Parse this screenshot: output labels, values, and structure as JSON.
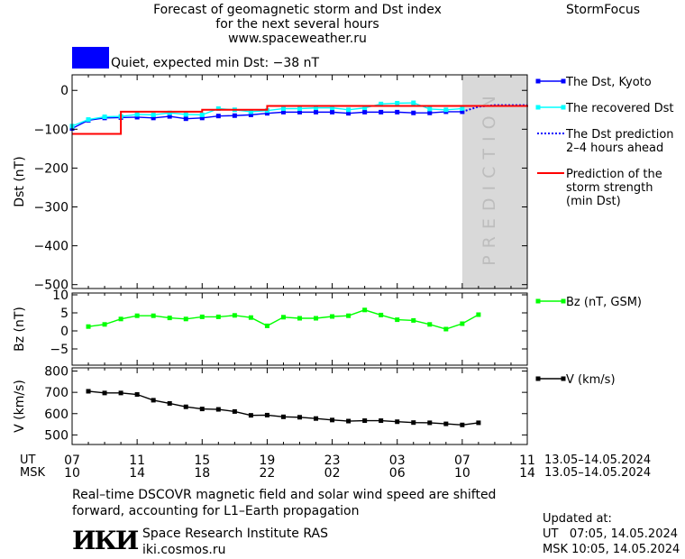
{
  "header": {
    "title_lines": [
      "Forecast of geomagnetic storm and Dst index",
      "for the next several hours",
      "www.spaceweather.ru"
    ],
    "brand": "StormFocus",
    "status_text": "Quiet, expected min Dst: −38 nT",
    "status_color": "#0000ff"
  },
  "chart_data": [
    {
      "type": "line",
      "ylabel": "Dst (nT)",
      "ylim": [
        -510,
        40
      ],
      "yticks": [
        0,
        -100,
        -200,
        -300,
        -400,
        -500
      ],
      "ytick_labels": [
        "0",
        "−100",
        "−200",
        "−300",
        "−400",
        "−500"
      ],
      "xlim": [
        7,
        35
      ],
      "prediction_zone": [
        31,
        35
      ],
      "prediction_label": "PREDICTION",
      "series": [
        {
          "name": "The Dst, Kyoto",
          "color": "#0000ff",
          "marker": "square",
          "x": [
            7,
            8,
            9,
            10,
            11,
            12,
            13,
            14,
            15,
            16,
            17,
            18,
            19,
            20,
            21,
            22,
            23,
            24,
            25,
            26,
            27,
            28,
            29,
            30,
            31
          ],
          "y": [
            -98,
            -77,
            -71,
            -70,
            -69,
            -71,
            -67,
            -73,
            -71,
            -66,
            -65,
            -63,
            -59,
            -56,
            -56,
            -56,
            -56,
            -59,
            -56,
            -56,
            -56,
            -58,
            -58,
            -55,
            -55
          ]
        },
        {
          "name": "The recovered Dst",
          "color": "#00ffff",
          "marker": "square",
          "x": [
            7,
            8,
            9,
            10,
            11,
            12,
            13,
            14,
            15,
            16,
            17,
            18,
            19,
            20,
            21,
            22,
            23,
            24,
            25,
            26,
            27,
            28,
            29,
            30,
            31
          ],
          "y": [
            -92,
            -75,
            -68,
            -67,
            -62,
            -63,
            -58,
            -62,
            -63,
            -47,
            -50,
            -55,
            -52,
            -47,
            -47,
            -45,
            -45,
            -50,
            -45,
            -35,
            -33,
            -32,
            -48,
            -50,
            -47
          ]
        },
        {
          "name": "The Dst prediction 2–4 hours ahead",
          "color": "#0000ff",
          "style": "dotted",
          "x": [
            31,
            32,
            33,
            34,
            35
          ],
          "y": [
            -55,
            -42,
            -38,
            -38,
            -38
          ]
        },
        {
          "name": "Prediction of the storm strength (min Dst)",
          "color": "#ff0000",
          "style": "step",
          "x": [
            7,
            9,
            10,
            15,
            19,
            35
          ],
          "y": [
            -112,
            -112,
            -55,
            -50,
            -40,
            -38
          ]
        }
      ]
    },
    {
      "type": "line",
      "ylabel": "Bz (nT)",
      "ylim": [
        -9.5,
        10.5
      ],
      "yticks": [
        10,
        5,
        0,
        -5
      ],
      "ytick_labels": [
        "10",
        "5",
        "0",
        "−5"
      ],
      "xlim": [
        7,
        35
      ],
      "series": [
        {
          "name": "Bz (nT, GSM)",
          "color": "#00ff00",
          "marker": "square",
          "x": [
            8,
            9,
            10,
            11,
            12,
            13,
            14,
            15,
            16,
            17,
            18,
            19,
            20,
            21,
            22,
            23,
            24,
            25,
            26,
            27,
            28,
            29,
            30,
            31,
            32
          ],
          "y": [
            1.2,
            1.8,
            3.3,
            4.2,
            4.2,
            3.6,
            3.3,
            3.9,
            3.9,
            4.3,
            3.7,
            1.4,
            3.8,
            3.5,
            3.5,
            4.0,
            4.2,
            5.8,
            4.4,
            3.1,
            2.9,
            1.8,
            0.5,
            2.0,
            4.5
          ]
        }
      ]
    },
    {
      "type": "line",
      "ylabel": "V (km/s)",
      "ylim": [
        455,
        815
      ],
      "yticks": [
        800,
        700,
        600,
        500
      ],
      "ytick_labels": [
        "800",
        "700",
        "600",
        "500"
      ],
      "xlim": [
        7,
        35
      ],
      "series": [
        {
          "name": "V (km/s)",
          "color": "#000000",
          "marker": "square",
          "x": [
            8,
            9,
            10,
            11,
            12,
            13,
            14,
            15,
            16,
            17,
            18,
            19,
            20,
            21,
            22,
            23,
            24,
            25,
            26,
            27,
            28,
            29,
            30,
            31,
            32
          ],
          "y": [
            705,
            697,
            697,
            690,
            663,
            648,
            632,
            622,
            620,
            610,
            592,
            593,
            585,
            583,
            577,
            570,
            565,
            567,
            567,
            562,
            558,
            557,
            552,
            547,
            557
          ]
        }
      ]
    }
  ],
  "time_axis": {
    "ut_label": "UT",
    "msk_label": "MSK",
    "positions": [
      7,
      11,
      15,
      19,
      23,
      27,
      31,
      35
    ],
    "ut_ticks": [
      "07",
      "11",
      "15",
      "19",
      "23",
      "03",
      "07",
      "11"
    ],
    "msk_ticks": [
      "10",
      "14",
      "18",
      "22",
      "02",
      "06",
      "10",
      "14"
    ],
    "ut_range": "13.05–14.05.2024",
    "msk_range": "13.05–14.05.2024"
  },
  "footer": {
    "note_lines": [
      "Real–time DSCOVR magnetic field and solar wind speed are shifted",
      "forward, accounting for L1–Earth propagation"
    ],
    "logo_text": "ИКИ",
    "institute": "Space Research Institute RAS",
    "website": "iki.cosmos.ru",
    "updated_label": "Updated at:",
    "updated_ut": "UT   07:05, 14.05.2024",
    "updated_msk": "MSK 10:05, 14.05.2024"
  }
}
